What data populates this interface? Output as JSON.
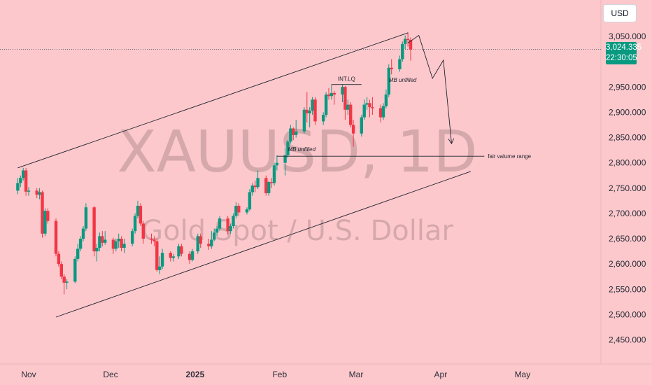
{
  "currency_button": "USD",
  "watermark": {
    "symbol": "XAUUSD, 1D",
    "description": "Gold Spot / U.S. Dollar"
  },
  "price_tag": {
    "price": "3,024.335",
    "countdown": "22:30:05"
  },
  "colors": {
    "background": "#fcc8cc",
    "up": "#089981",
    "down": "#f23645",
    "line": "#1e222d"
  },
  "chart_data": {
    "type": "candlestick",
    "symbol": "XAUUSD",
    "interval": "1D",
    "current_price": 3024.335,
    "y_axis": {
      "min": 2420,
      "max": 3080,
      "ticks": [
        "3,050.000",
        "2,950.000",
        "2,900.000",
        "2,850.000",
        "2,800.000",
        "2,750.000",
        "2,700.000",
        "2,650.000",
        "2,600.000",
        "2,550.000",
        "2,500.000",
        "2,450.000"
      ],
      "tick_values": [
        3050,
        2950,
        2900,
        2850,
        2800,
        2750,
        2700,
        2650,
        2600,
        2550,
        2500,
        2450
      ]
    },
    "x_axis": {
      "labels": [
        {
          "text": "Nov",
          "date": "2024-11-01",
          "bold": false
        },
        {
          "text": "Dec",
          "date": "2024-12-01",
          "bold": false
        },
        {
          "text": "2025",
          "date": "2025-01-01",
          "bold": true
        },
        {
          "text": "Feb",
          "date": "2025-02-01",
          "bold": false
        },
        {
          "text": "Mar",
          "date": "2025-03-01",
          "bold": false
        },
        {
          "text": "Apr",
          "date": "2025-04-01",
          "bold": false
        },
        {
          "text": "May",
          "date": "2025-05-01",
          "bold": false
        }
      ]
    },
    "candles": [
      [
        "2024-10-28",
        2745,
        2770,
        2738,
        2760
      ],
      [
        "2024-10-29",
        2760,
        2775,
        2752,
        2770
      ],
      [
        "2024-10-30",
        2770,
        2790,
        2765,
        2785
      ],
      [
        "2024-10-31",
        2785,
        2790,
        2735,
        2743
      ],
      [
        "2024-11-01",
        2743,
        2752,
        2735,
        2745
      ],
      [
        "2024-11-04",
        2745,
        2750,
        2730,
        2737
      ],
      [
        "2024-11-05",
        2737,
        2750,
        2728,
        2742
      ],
      [
        "2024-11-06",
        2742,
        2745,
        2652,
        2660
      ],
      [
        "2024-11-07",
        2660,
        2710,
        2655,
        2705
      ],
      [
        "2024-11-08",
        2705,
        2710,
        2680,
        2685
      ],
      [
        "2024-11-11",
        2685,
        2690,
        2615,
        2620
      ],
      [
        "2024-11-12",
        2620,
        2625,
        2595,
        2600
      ],
      [
        "2024-11-13",
        2600,
        2605,
        2570,
        2575
      ],
      [
        "2024-11-14",
        2575,
        2580,
        2540,
        2563
      ],
      [
        "2024-11-15",
        2563,
        2570,
        2550,
        2565
      ],
      [
        "2024-11-18",
        2565,
        2615,
        2562,
        2610
      ],
      [
        "2024-11-19",
        2610,
        2640,
        2605,
        2630
      ],
      [
        "2024-11-20",
        2630,
        2655,
        2625,
        2650
      ],
      [
        "2024-11-21",
        2650,
        2675,
        2645,
        2670
      ],
      [
        "2024-11-22",
        2670,
        2720,
        2665,
        2712
      ],
      [
        "2024-11-25",
        2712,
        2715,
        2615,
        2625
      ],
      [
        "2024-11-26",
        2625,
        2640,
        2605,
        2632
      ],
      [
        "2024-11-27",
        2632,
        2662,
        2625,
        2655
      ],
      [
        "2024-11-28",
        2655,
        2665,
        2635,
        2642
      ],
      [
        "2024-11-29",
        2642,
        2665,
        2638,
        2648
      ],
      [
        "2024-12-02",
        2648,
        2652,
        2620,
        2630
      ],
      [
        "2024-12-03",
        2630,
        2650,
        2625,
        2645
      ],
      [
        "2024-12-04",
        2645,
        2660,
        2632,
        2650
      ],
      [
        "2024-12-05",
        2650,
        2655,
        2625,
        2632
      ],
      [
        "2024-12-06",
        2632,
        2650,
        2622,
        2640
      ],
      [
        "2024-12-09",
        2640,
        2670,
        2635,
        2665
      ],
      [
        "2024-12-10",
        2665,
        2700,
        2660,
        2695
      ],
      [
        "2024-12-11",
        2695,
        2725,
        2690,
        2715
      ],
      [
        "2024-12-12",
        2715,
        2720,
        2675,
        2680
      ],
      [
        "2024-12-13",
        2680,
        2685,
        2640,
        2650
      ],
      [
        "2024-12-16",
        2650,
        2660,
        2640,
        2648
      ],
      [
        "2024-12-17",
        2648,
        2655,
        2635,
        2645
      ],
      [
        "2024-12-18",
        2645,
        2650,
        2585,
        2588
      ],
      [
        "2024-12-19",
        2588,
        2615,
        2580,
        2595
      ],
      [
        "2024-12-20",
        2595,
        2630,
        2590,
        2622
      ],
      [
        "2024-12-23",
        2622,
        2625,
        2605,
        2612
      ],
      [
        "2024-12-24",
        2612,
        2620,
        2605,
        2615
      ],
      [
        "2024-12-26",
        2615,
        2640,
        2610,
        2635
      ],
      [
        "2024-12-27",
        2635,
        2640,
        2615,
        2620
      ],
      [
        "2024-12-30",
        2620,
        2625,
        2600,
        2608
      ],
      [
        "2024-12-31",
        2608,
        2630,
        2605,
        2625
      ],
      [
        "2025-01-02",
        2625,
        2660,
        2620,
        2655
      ],
      [
        "2025-01-03",
        2655,
        2660,
        2632,
        2640
      ],
      [
        "2025-01-06",
        2640,
        2650,
        2628,
        2635
      ],
      [
        "2025-01-07",
        2635,
        2665,
        2630,
        2648
      ],
      [
        "2025-01-08",
        2648,
        2670,
        2645,
        2662
      ],
      [
        "2025-01-09",
        2662,
        2675,
        2655,
        2670
      ],
      [
        "2025-01-10",
        2670,
        2695,
        2665,
        2690
      ],
      [
        "2025-01-13",
        2690,
        2695,
        2658,
        2665
      ],
      [
        "2025-01-14",
        2665,
        2680,
        2660,
        2675
      ],
      [
        "2025-01-15",
        2675,
        2700,
        2670,
        2695
      ],
      [
        "2025-01-16",
        2695,
        2722,
        2690,
        2715
      ],
      [
        "2025-01-17",
        2715,
        2720,
        2695,
        2702
      ],
      [
        "2025-01-20",
        2702,
        2712,
        2698,
        2708
      ],
      [
        "2025-01-21",
        2708,
        2748,
        2705,
        2742
      ],
      [
        "2025-01-22",
        2742,
        2760,
        2735,
        2755
      ],
      [
        "2025-01-23",
        2755,
        2765,
        2742,
        2752
      ],
      [
        "2025-01-24",
        2752,
        2785,
        2748,
        2770
      ],
      [
        "2025-01-27",
        2770,
        2775,
        2735,
        2740
      ],
      [
        "2025-01-28",
        2740,
        2765,
        2735,
        2762
      ],
      [
        "2025-01-29",
        2762,
        2770,
        2750,
        2760
      ],
      [
        "2025-01-30",
        2760,
        2800,
        2755,
        2795
      ],
      [
        "2025-01-31",
        2795,
        2815,
        2785,
        2800
      ],
      [
        "2025-02-03",
        2800,
        2830,
        2775,
        2815
      ],
      [
        "2025-02-04",
        2815,
        2845,
        2810,
        2842
      ],
      [
        "2025-02-05",
        2842,
        2875,
        2838,
        2868
      ],
      [
        "2025-02-06",
        2868,
        2870,
        2845,
        2855
      ],
      [
        "2025-02-07",
        2855,
        2885,
        2850,
        2862
      ],
      [
        "2025-02-10",
        2862,
        2910,
        2858,
        2905
      ],
      [
        "2025-02-11",
        2905,
        2940,
        2880,
        2898
      ],
      [
        "2025-02-12",
        2898,
        2910,
        2870,
        2903
      ],
      [
        "2025-02-13",
        2903,
        2930,
        2895,
        2925
      ],
      [
        "2025-02-14",
        2925,
        2930,
        2875,
        2882
      ],
      [
        "2025-02-17",
        2882,
        2900,
        2875,
        2895
      ],
      [
        "2025-02-18",
        2895,
        2940,
        2890,
        2935
      ],
      [
        "2025-02-19",
        2935,
        2948,
        2925,
        2932
      ],
      [
        "2025-02-20",
        2932,
        2955,
        2925,
        2938
      ],
      [
        "2025-02-21",
        2938,
        2942,
        2915,
        2935
      ],
      [
        "2025-02-24",
        2935,
        2955,
        2920,
        2950
      ],
      [
        "2025-02-25",
        2950,
        2952,
        2885,
        2905
      ],
      [
        "2025-02-26",
        2905,
        2925,
        2895,
        2915
      ],
      [
        "2025-02-27",
        2915,
        2920,
        2870,
        2875
      ],
      [
        "2025-02-28",
        2875,
        2885,
        2832,
        2858
      ],
      [
        "2025-03-03",
        2858,
        2895,
        2852,
        2890
      ],
      [
        "2025-03-04",
        2890,
        2925,
        2885,
        2915
      ],
      [
        "2025-03-05",
        2915,
        2930,
        2905,
        2918
      ],
      [
        "2025-03-06",
        2918,
        2925,
        2890,
        2910
      ],
      [
        "2025-03-07",
        2910,
        2930,
        2895,
        2908
      ],
      [
        "2025-03-10",
        2908,
        2915,
        2880,
        2890
      ],
      [
        "2025-03-11",
        2890,
        2918,
        2885,
        2912
      ],
      [
        "2025-03-12",
        2912,
        2945,
        2908,
        2935
      ],
      [
        "2025-03-13",
        2935,
        2995,
        2930,
        2988
      ],
      [
        "2025-03-14",
        2988,
        3005,
        2975,
        2985
      ],
      [
        "2025-03-17",
        2985,
        3012,
        2980,
        3005
      ],
      [
        "2025-03-18",
        3005,
        3040,
        3000,
        3035
      ],
      [
        "2025-03-19",
        3035,
        3052,
        3025,
        3045
      ],
      [
        "2025-03-20",
        3045,
        3058,
        3030,
        3043
      ],
      [
        "2025-03-21",
        3043,
        3048,
        3002,
        3024
      ]
    ],
    "annotations": [
      {
        "type": "trend_line",
        "label": "",
        "points": [
          [
            "2024-10-28",
            2790
          ],
          [
            "2025-03-20",
            3057
          ]
        ]
      },
      {
        "type": "trend_line",
        "label": "",
        "points": [
          [
            "2024-11-11",
            2495
          ],
          [
            "2025-04-12",
            2783
          ]
        ]
      },
      {
        "type": "horizontal_ray",
        "label": "fair valume range",
        "price": 2813,
        "from": "2025-01-31",
        "to": "2025-04-17"
      },
      {
        "type": "level",
        "label": "INT.LQ",
        "price": 2955,
        "from": "2025-02-20",
        "to": "2025-03-03"
      },
      {
        "type": "text",
        "label": "MB unfilled",
        "at": [
          "2025-02-04",
          2823
        ]
      },
      {
        "type": "text",
        "label": "MB unfilled",
        "at": [
          "2025-03-13",
          2960
        ]
      },
      {
        "type": "projection_path",
        "label": "",
        "points": [
          [
            "2025-03-20",
            3037
          ],
          [
            "2025-03-24",
            3052
          ],
          [
            "2025-03-29",
            2967
          ],
          [
            "2025-04-02",
            3003
          ],
          [
            "2025-04-05",
            2838
          ]
        ]
      }
    ]
  }
}
